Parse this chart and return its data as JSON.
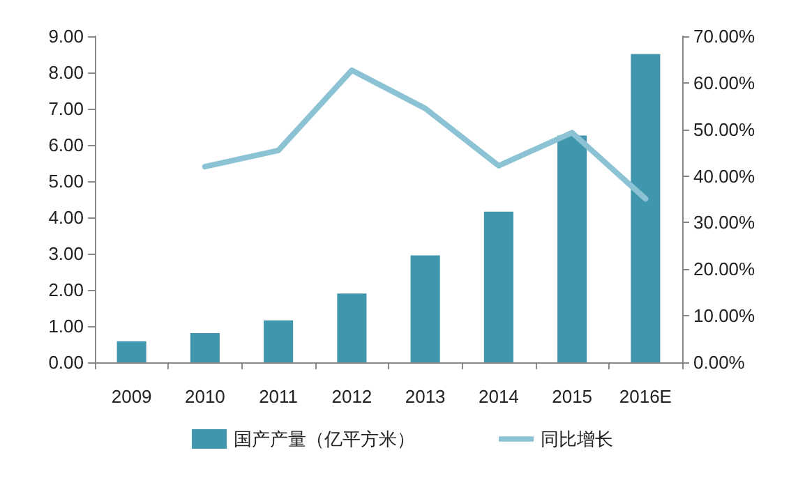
{
  "chart_data": {
    "type": "bar",
    "categories": [
      "2009",
      "2010",
      "2011",
      "2012",
      "2013",
      "2014",
      "2015",
      "2016E"
    ],
    "series": [
      {
        "name": "国产产量（亿平方米）",
        "color": "#4097ad",
        "values": [
          0.58,
          0.81,
          1.16,
          1.9,
          2.95,
          4.16,
          6.26,
          8.51
        ]
      },
      {
        "name": "同比增长",
        "type": "line",
        "axis": "y2",
        "color": "#8cc3d4",
        "values": [
          null,
          42.0,
          45.5,
          62.7,
          54.5,
          42.2,
          49.3,
          35.1
        ]
      }
    ],
    "ylim": [
      0,
      9
    ],
    "yticks": [
      {
        "value": 0,
        "label": "0.00"
      },
      {
        "value": 1,
        "label": "1.00"
      },
      {
        "value": 2,
        "label": "2.00"
      },
      {
        "value": 3,
        "label": "3.00"
      },
      {
        "value": 4,
        "label": "4.00"
      },
      {
        "value": 5,
        "label": "5.00"
      },
      {
        "value": 6,
        "label": "6.00"
      },
      {
        "value": 7,
        "label": "7.00"
      },
      {
        "value": 8,
        "label": "8.00"
      },
      {
        "value": 9,
        "label": "9.00"
      }
    ],
    "y2lim": [
      0,
      70
    ],
    "y2ticks": [
      {
        "value": 0,
        "label": "0.00%"
      },
      {
        "value": 10,
        "label": "10.00%"
      },
      {
        "value": 20,
        "label": "20.00%"
      },
      {
        "value": 30,
        "label": "30.00%"
      },
      {
        "value": 40,
        "label": "40.00%"
      },
      {
        "value": 50,
        "label": "50.00%"
      },
      {
        "value": 60,
        "label": "60.00%"
      },
      {
        "value": 70,
        "label": "70.00%"
      }
    ],
    "grid": false,
    "legend": "bottom",
    "marker": "none",
    "line_style": "solid"
  }
}
